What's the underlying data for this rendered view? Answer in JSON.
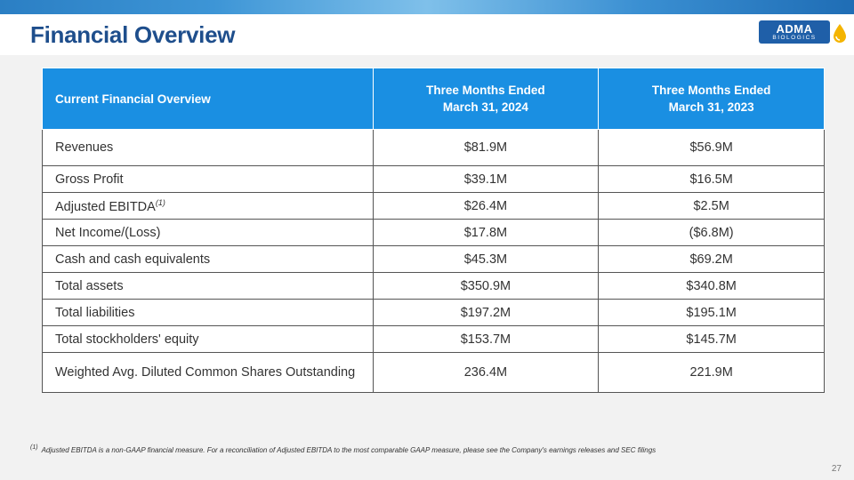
{
  "slide": {
    "title": "Financial Overview",
    "page_number": "27"
  },
  "logo": {
    "line1": "ADMA",
    "line2": "BIOLOGICS"
  },
  "table": {
    "headers": [
      "Current Financial Overview",
      "Three Months Ended\nMarch 31, 2024",
      "Three Months Ended\nMarch 31, 2023"
    ],
    "rows": [
      {
        "label": "Revenues",
        "v2024": "$81.9M",
        "v2023": "$56.9M"
      },
      {
        "label": "Gross Profit",
        "v2024": "$39.1M",
        "v2023": "$16.5M"
      },
      {
        "label": "Adjusted EBITDA",
        "label_sup": "(1)",
        "v2024": "$26.4M",
        "v2023": "$2.5M"
      },
      {
        "label": "Net Income/(Loss)",
        "v2024": "$17.8M",
        "v2023": "($6.8M)"
      },
      {
        "label": "Cash and cash equivalents",
        "v2024": "$45.3M",
        "v2023": "$69.2M"
      },
      {
        "label": "Total assets",
        "v2024": "$350.9M",
        "v2023": "$340.8M"
      },
      {
        "label": "Total liabilities",
        "v2024": "$197.2M",
        "v2023": "$195.1M"
      },
      {
        "label": "Total stockholders' equity",
        "v2024": "$153.7M",
        "v2023": "$145.7M"
      },
      {
        "label": "Weighted Avg. Diluted Common Shares Outstanding",
        "v2024": "236.4M",
        "v2023": "221.9M"
      }
    ]
  },
  "footnote": {
    "marker": "(1)",
    "text": "Adjusted EBITDA is a non-GAAP financial measure. For a reconciliation of Adjusted EBITDA to the most comparable GAAP measure, please see the Company's earnings releases and SEC filings"
  },
  "colors": {
    "title": "#1e4e8c",
    "table_header": "#1a8fe2",
    "logo_blue": "#1f5fa8",
    "logo_drop": "#f4b400"
  }
}
